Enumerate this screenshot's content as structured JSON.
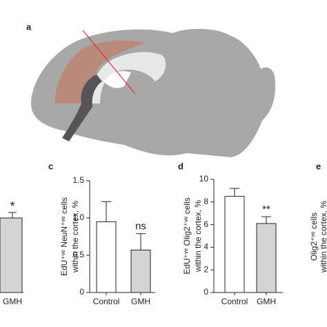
{
  "chart_data": [
    {
      "type": "bar",
      "panel": "a"
    },
    {
      "type": "bar",
      "categories": [
        "GMH"
      ],
      "annotations": [
        "*"
      ]
    },
    {
      "type": "bar",
      "panel": "c",
      "ylabel": [
        "EdU⁺ᵛᵉ NeuN⁺ᵛᵉ cells",
        "within the cortex, %"
      ],
      "categories": [
        "Control",
        "GMH"
      ],
      "values": [
        0.95,
        0.57
      ],
      "errors": [
        0.27,
        0.22
      ],
      "annotations": [
        null,
        "ns"
      ],
      "colors": [
        "#ffffff",
        "#d4d4d4"
      ],
      "ylim": [
        0,
        1.5
      ],
      "yticks": [
        0,
        0.5,
        {
          "value": 1,
          "label": "1.0"
        },
        {
          "value": 1.5,
          "label": "1.5"
        }
      ]
    },
    {
      "type": "bar",
      "panel": "d",
      "ylabel": [
        "EdU⁺ᵛᵉ Olig2⁺ᵛᵉ cells",
        "within the cortex, %"
      ],
      "categories": [
        "Control",
        "GMH"
      ],
      "values": [
        8.5,
        6.1
      ],
      "errors": [
        0.7,
        0.6
      ],
      "annotations": [
        null,
        "**"
      ],
      "colors": [
        "#ffffff",
        "#d4d4d4"
      ],
      "ylim": [
        0,
        10
      ],
      "yticks": [
        0,
        2,
        4,
        6,
        8,
        10
      ]
    },
    {
      "type": "bar",
      "panel": "e",
      "ylabel": [
        "Olig2⁺ᵛᵉ cells",
        "within the cortex, %"
      ]
    }
  ]
}
